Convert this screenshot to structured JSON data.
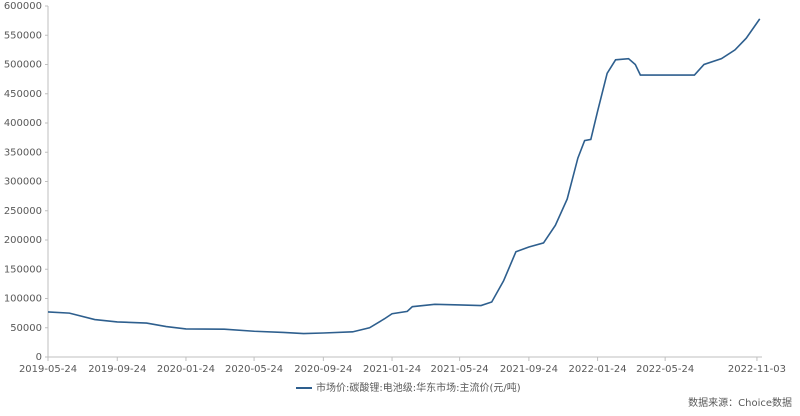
{
  "chart_data": {
    "type": "line",
    "x": [
      "2019-05-24",
      "2019-07-01",
      "2019-08-15",
      "2019-09-24",
      "2019-11-15",
      "2019-12-20",
      "2020-01-24",
      "2020-04-01",
      "2020-05-24",
      "2020-07-15",
      "2020-08-20",
      "2020-09-24",
      "2020-11-15",
      "2020-12-15",
      "2021-01-10",
      "2021-01-24",
      "2021-02-20",
      "2021-03-01",
      "2021-04-10",
      "2021-05-24",
      "2021-07-01",
      "2021-07-20",
      "2021-08-10",
      "2021-09-01",
      "2021-09-24",
      "2021-10-20",
      "2021-11-10",
      "2021-12-01",
      "2021-12-20",
      "2022-01-01",
      "2022-01-12",
      "2022-01-24",
      "2022-02-10",
      "2022-02-25",
      "2022-03-20",
      "2022-04-01",
      "2022-04-10",
      "2022-05-24",
      "2022-07-15",
      "2022-08-01",
      "2022-09-01",
      "2022-09-25",
      "2022-10-15",
      "2022-11-08"
    ],
    "series": [
      {
        "name": "市场价:碳酸锂:电池级:华东市场:主流价(元/吨)",
        "color": "#2e5f8e",
        "values": [
          77000,
          75000,
          64000,
          60000,
          58000,
          52000,
          48000,
          47500,
          44000,
          42000,
          40000,
          41000,
          43000,
          50000,
          65000,
          74000,
          78000,
          86000,
          90000,
          89000,
          88000,
          94000,
          130000,
          180000,
          188000,
          195000,
          225000,
          270000,
          340000,
          370000,
          372000,
          420000,
          485000,
          508000,
          510000,
          500000,
          482000,
          482000,
          482000,
          500000,
          510000,
          525000,
          545000,
          578000
        ]
      }
    ],
    "xlim": [
      "2019-05-24",
      "2022-11-12"
    ],
    "xticks": [
      "2019-05-24",
      "2019-09-24",
      "2020-01-24",
      "2020-05-24",
      "2020-09-24",
      "2021-01-24",
      "2021-05-24",
      "2021-09-24",
      "2022-01-24",
      "2022-05-24",
      "2022-11-03"
    ],
    "ylim": [
      0,
      600000
    ],
    "yticks": [
      0,
      50000,
      100000,
      150000,
      200000,
      250000,
      300000,
      350000,
      400000,
      450000,
      500000,
      550000,
      600000
    ],
    "grid": false,
    "source": "数据来源：Choice数据"
  }
}
